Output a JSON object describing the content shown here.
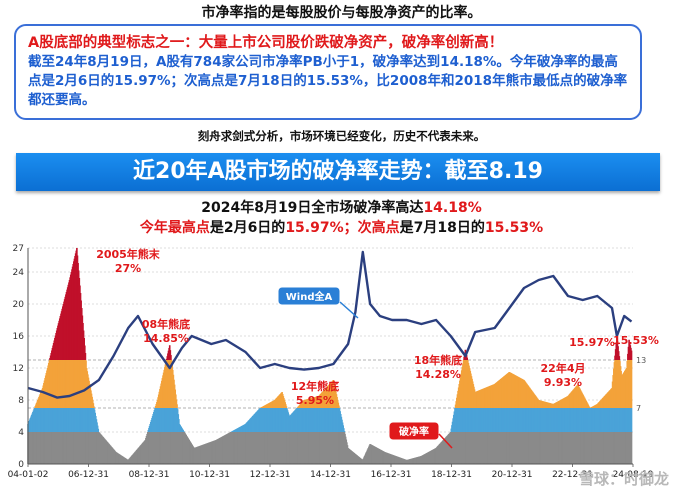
{
  "header": {
    "top_line": "市净率指的是每股股价与每股净资产的比率。",
    "box_title": "A股底部的典型标志之一：大量上市公司股价跌破净资产，破净率创新高！",
    "box_body": "截至24年8月19日，A股有784家公司市净率PB小于1，破净率达到14.18%。今年破净率的最高点是2月6日的15.97%；次高点是7月18日的15.53%，比2008年和2018年熊市最低点的破净率都还要高。",
    "disclaimer": "刻舟求剑式分析，市场环境已经变化，历史不代表未来。",
    "banner": "近20年A股市场的破净率走势：截至8.19",
    "sub1_black": "2024年8月19日全市场破净率高达",
    "sub1_red": "14.18%",
    "sub2_a": "今年最高点",
    "sub2_b": "是2月6日的",
    "sub2_c": "15.97%；次高点",
    "sub2_d": "是7月18日的",
    "sub2_e": "15.53%"
  },
  "watermark": "雪球：时御龙",
  "colors": {
    "wind_line": "#2b3f7f",
    "low_zone": "#8a8a8a",
    "mid_zone": "#4aa3d8",
    "high_zone": "#f3a23a",
    "peak_zone": "#c0102a",
    "annotation_red": "#e0191b",
    "callout_blue": "#2a7fd6",
    "callout_red": "#e0191b"
  },
  "chart_data": {
    "type": "line",
    "title": "",
    "x_ticks": [
      "04-01-02",
      "06-12-31",
      "08-12-31",
      "10-12-31",
      "12-12-31",
      "14-12-31",
      "16-12-31",
      "18-12-31",
      "20-12-31",
      "22-12-31",
      "24-08-19"
    ],
    "y_ticks": [
      "0",
      "4",
      "8",
      "12",
      "16",
      "20",
      "24",
      "27"
    ],
    "ylim": [
      0,
      27
    ],
    "right_axis_labels": [
      "13",
      "7"
    ],
    "grid": "horizontal dotted",
    "series": [
      {
        "name": "Wind全A",
        "x": [
          "2004-01",
          "2004-07",
          "2005-01",
          "2005-06",
          "2005-12",
          "2006-06",
          "2006-12",
          "2007-06",
          "2007-10",
          "2008-04",
          "2008-11",
          "2009-04",
          "2009-08",
          "2010-04",
          "2010-10",
          "2011-06",
          "2011-12",
          "2012-06",
          "2012-12",
          "2013-06",
          "2013-12",
          "2014-06",
          "2014-12",
          "2015-03",
          "2015-06",
          "2015-09",
          "2016-01",
          "2016-06",
          "2016-12",
          "2017-06",
          "2017-12",
          "2018-06",
          "2018-12",
          "2019-04",
          "2019-12",
          "2020-06",
          "2020-12",
          "2021-06",
          "2021-12",
          "2022-06",
          "2022-12",
          "2023-06",
          "2023-12",
          "2024-02",
          "2024-05",
          "2024-08"
        ],
        "values": [
          9.5,
          9.0,
          8.3,
          8.5,
          9.2,
          10.5,
          13.5,
          17.0,
          18.5,
          15.0,
          12.0,
          14.5,
          16.0,
          15.0,
          15.5,
          14.0,
          12.0,
          12.5,
          12.0,
          11.8,
          12.0,
          12.5,
          15.0,
          19.0,
          26.5,
          20.0,
          18.5,
          18.0,
          18.0,
          17.5,
          18.0,
          16.0,
          13.5,
          16.5,
          17.0,
          19.5,
          22.0,
          23.0,
          23.5,
          21.0,
          20.5,
          21.0,
          19.5,
          16.0,
          18.5,
          17.8
        ]
      },
      {
        "name": "破净率",
        "x": [
          "2004-01",
          "2004-07",
          "2005-01",
          "2005-06",
          "2005-09",
          "2006-01",
          "2006-06",
          "2007-01",
          "2007-06",
          "2008-01",
          "2008-06",
          "2008-11",
          "2009-03",
          "2009-09",
          "2010-06",
          "2011-06",
          "2011-12",
          "2012-06",
          "2012-09",
          "2012-12",
          "2013-06",
          "2013-12",
          "2014-06",
          "2014-12",
          "2015-06",
          "2015-09",
          "2016-03",
          "2016-12",
          "2017-06",
          "2017-12",
          "2018-06",
          "2018-12",
          "2019-04",
          "2019-12",
          "2020-06",
          "2020-12",
          "2021-06",
          "2021-12",
          "2022-06",
          "2022-10",
          "2023-03",
          "2023-06",
          "2023-12",
          "2024-02",
          "2024-04",
          "2024-06",
          "2024-07",
          "2024-08"
        ],
        "values": [
          5.0,
          9.5,
          17.0,
          23.0,
          27.0,
          12.0,
          4.0,
          1.5,
          0.5,
          3.0,
          8.0,
          14.85,
          5.0,
          2.0,
          3.0,
          5.0,
          7.0,
          8.0,
          9.0,
          5.95,
          8.0,
          8.5,
          10.5,
          2.0,
          0.5,
          2.5,
          1.5,
          0.5,
          1.0,
          2.0,
          4.0,
          14.28,
          9.0,
          10.0,
          11.5,
          10.5,
          8.0,
          7.5,
          8.5,
          9.93,
          7.0,
          7.5,
          9.5,
          15.97,
          11.0,
          12.0,
          15.53,
          14.18
        ]
      }
    ],
    "zones": [
      {
        "label": "0-4",
        "color_key": "low_zone"
      },
      {
        "label": "4-7",
        "color_key": "mid_zone"
      },
      {
        "label": "7-13",
        "color_key": "high_zone"
      },
      {
        "label": ">13",
        "color_key": "peak_zone"
      }
    ],
    "annotations": [
      {
        "text": "2005年熊末",
        "value": "27%"
      },
      {
        "text": "08年熊底",
        "value": "14.85%"
      },
      {
        "text": "12年熊底",
        "value": "5.95%"
      },
      {
        "text": "18年熊底",
        "value": "14.28%"
      },
      {
        "text": "22年4月",
        "value": "9.93%"
      },
      {
        "text": "",
        "value": "15.97%"
      },
      {
        "text": "",
        "value": "15.53%"
      }
    ],
    "callouts": [
      "Wind全A",
      "破净率"
    ]
  }
}
